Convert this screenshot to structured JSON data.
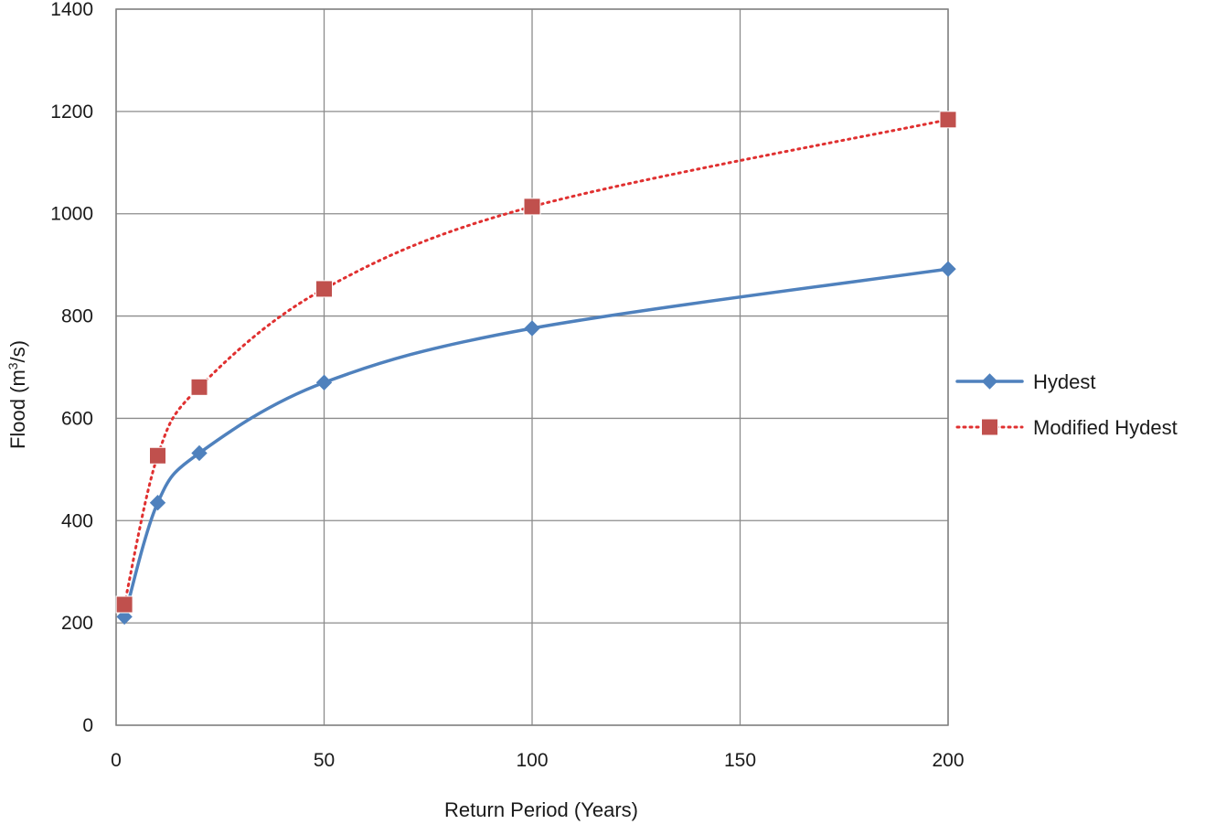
{
  "chart_data": {
    "type": "line",
    "xlabel": "Return Period (Years)",
    "ylabel_parts": [
      "Flood (m",
      "3",
      "/s)"
    ],
    "xlim": [
      0,
      200
    ],
    "ylim": [
      0,
      1400
    ],
    "x_ticks": [
      0,
      50,
      100,
      150,
      200
    ],
    "y_ticks": [
      0,
      200,
      400,
      600,
      800,
      1000,
      1200,
      1400
    ],
    "x_tick_labels": [
      "0",
      "50",
      "100",
      "150",
      "200"
    ],
    "y_tick_labels": [
      "0",
      "200",
      "400",
      "600",
      "800",
      "1000",
      "1200",
      "1400"
    ],
    "grid": true,
    "legend_position": "right",
    "series": [
      {
        "name": "Hydest",
        "color": "#4f81bd",
        "marker": "diamond",
        "line_style": "solid",
        "smooth": true,
        "x": [
          2,
          10,
          20,
          50,
          100,
          200
        ],
        "y": [
          212,
          435,
          532,
          670,
          776,
          892
        ]
      },
      {
        "name": "Modified Hydest",
        "color": "#e03030",
        "marker_color": "#c0504d",
        "marker": "square",
        "line_style": "dotted",
        "smooth": true,
        "x": [
          2,
          10,
          20,
          50,
          100,
          200
        ],
        "y": [
          236,
          527,
          661,
          853,
          1014,
          1184
        ]
      }
    ]
  }
}
